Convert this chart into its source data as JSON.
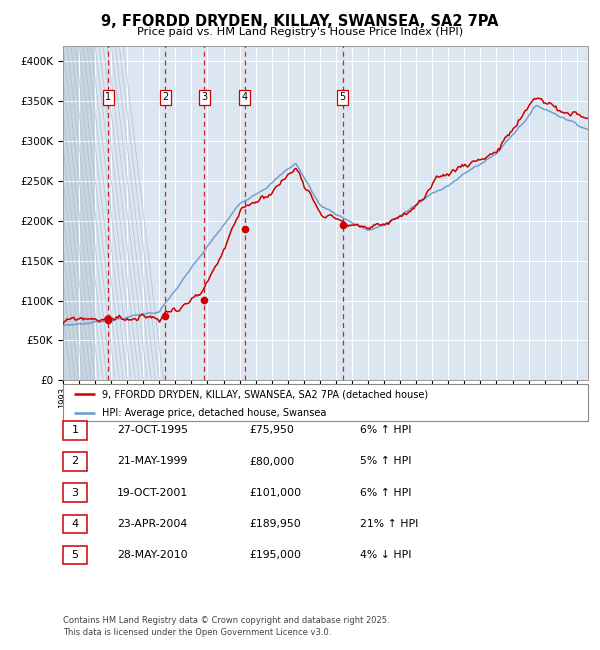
{
  "title": "9, FFORDD DRYDEN, KILLAY, SWANSEA, SA2 7PA",
  "subtitle": "Price paid vs. HM Land Registry's House Price Index (HPI)",
  "transactions": [
    {
      "num": 1,
      "date": "27-OCT-1995",
      "date_x": 1995.82,
      "price": 75950,
      "pct": "6%",
      "dir": "↑"
    },
    {
      "num": 2,
      "date": "21-MAY-1999",
      "date_x": 1999.38,
      "price": 80000,
      "pct": "5%",
      "dir": "↑"
    },
    {
      "num": 3,
      "date": "19-OCT-2001",
      "date_x": 2001.8,
      "price": 101000,
      "pct": "6%",
      "dir": "↑"
    },
    {
      "num": 4,
      "date": "23-APR-2004",
      "date_x": 2004.31,
      "price": 189950,
      "pct": "21%",
      "dir": "↑"
    },
    {
      "num": 5,
      "date": "28-MAY-2010",
      "date_x": 2010.41,
      "price": 195000,
      "pct": "4%",
      "dir": "↓"
    }
  ],
  "table_rows": [
    [
      "1",
      "27-OCT-1995",
      "£75,950",
      "6% ↑ HPI"
    ],
    [
      "2",
      "21-MAY-1999",
      "£80,000",
      "5% ↑ HPI"
    ],
    [
      "3",
      "19-OCT-2001",
      "£101,000",
      "6% ↑ HPI"
    ],
    [
      "4",
      "23-APR-2004",
      "£189,950",
      "21% ↑ HPI"
    ],
    [
      "5",
      "28-MAY-2010",
      "£195,000",
      "4% ↓ HPI"
    ]
  ],
  "legend_label_red": "9, FFORDD DRYDEN, KILLAY, SWANSEA, SA2 7PA (detached house)",
  "legend_label_blue": "HPI: Average price, detached house, Swansea",
  "footer": "Contains HM Land Registry data © Crown copyright and database right 2025.\nThis data is licensed under the Open Government Licence v3.0.",
  "ylim": [
    0,
    420000
  ],
  "yticks": [
    0,
    50000,
    100000,
    150000,
    200000,
    250000,
    300000,
    350000,
    400000
  ],
  "xlim": [
    1993.0,
    2025.7
  ],
  "red_color": "#cc0000",
  "blue_color": "#6699cc",
  "plot_bg": "#dce6f0",
  "grid_color": "#ffffff",
  "vline_color": "#cc0000",
  "hatch_end": 1995.0
}
